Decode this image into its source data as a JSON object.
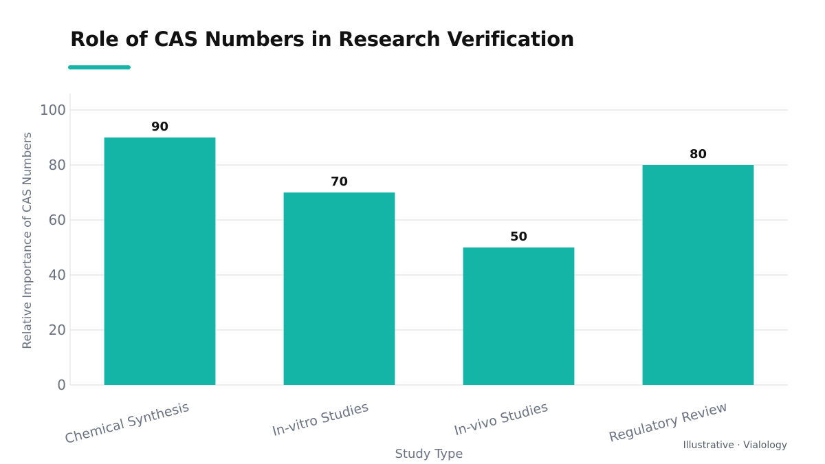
{
  "title": "Role of CAS Numbers in Research Verification",
  "source_note": "Illustrative · Vialology",
  "colors": {
    "bar": "#14b4a7",
    "accent": "#14b4a7",
    "grid": "#e6e8eb",
    "axis_text": "#6b7280",
    "label_text": "#111111"
  },
  "chart_data": {
    "type": "bar",
    "categories": [
      "Chemical Synthesis",
      "In-vitro Studies",
      "In-vivo Studies",
      "Regulatory Review"
    ],
    "values": [
      90,
      70,
      50,
      80
    ],
    "xlabel": "Study Type",
    "ylabel": "Relative Importance of CAS Numbers",
    "ylim": [
      0,
      100
    ],
    "yticks": [
      0,
      20,
      40,
      60,
      80,
      100
    ],
    "grid": true,
    "legend": "none",
    "data_labels": true
  }
}
